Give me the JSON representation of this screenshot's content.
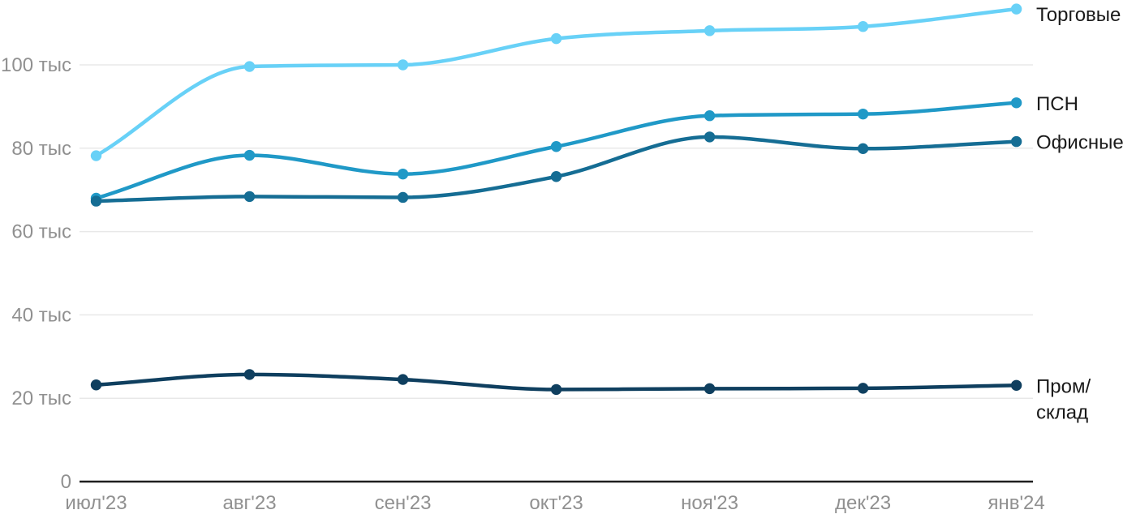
{
  "chart_data": {
    "type": "line",
    "title": "",
    "categories": [
      "июл'23",
      "авг'23",
      "сен'23",
      "окт'23",
      "ноя'23",
      "дек'23",
      "янв'24"
    ],
    "series": [
      {
        "name": "Торговые",
        "slug": "retail",
        "color": "#68D1F7",
        "values": [
          78.2,
          99.6,
          100.0,
          106.3,
          108.2,
          109.2,
          113.4
        ],
        "label_lines": [
          "Торговые"
        ]
      },
      {
        "name": "ПСН",
        "slug": "psn",
        "color": "#2099C7",
        "values": [
          68.0,
          78.3,
          73.8,
          80.4,
          87.8,
          88.2,
          90.9
        ],
        "label_lines": [
          "ПСН"
        ]
      },
      {
        "name": "Офисные",
        "slug": "office",
        "color": "#156D94",
        "values": [
          67.3,
          68.4,
          68.2,
          73.2,
          82.7,
          79.9,
          81.6
        ],
        "label_lines": [
          "Офисные"
        ]
      },
      {
        "name": "Пром/склад",
        "slug": "industrial-warehouse",
        "color": "#0F3F5F",
        "values": [
          23.2,
          25.7,
          24.5,
          22.1,
          22.3,
          22.4,
          23.1
        ],
        "label_lines": [
          "Пром/",
          "склад"
        ]
      }
    ],
    "unit": "тыс",
    "y_axis": {
      "ticks": [
        0,
        20,
        40,
        60,
        80,
        100
      ],
      "tick_labels": [
        "0",
        "20 тыс",
        "40 тыс",
        "60 тыс",
        "80 тыс",
        "100 тыс"
      ],
      "range": [
        0,
        115.6
      ]
    },
    "grid": true,
    "legend_position": "right-of-line-ends",
    "colors": {
      "axis_line": "#1F1F1F",
      "grid_line": "#E8E8E8",
      "tick_text": "#909090",
      "legend_text": "#1A1A1A",
      "background": "#FFFFFF"
    }
  }
}
